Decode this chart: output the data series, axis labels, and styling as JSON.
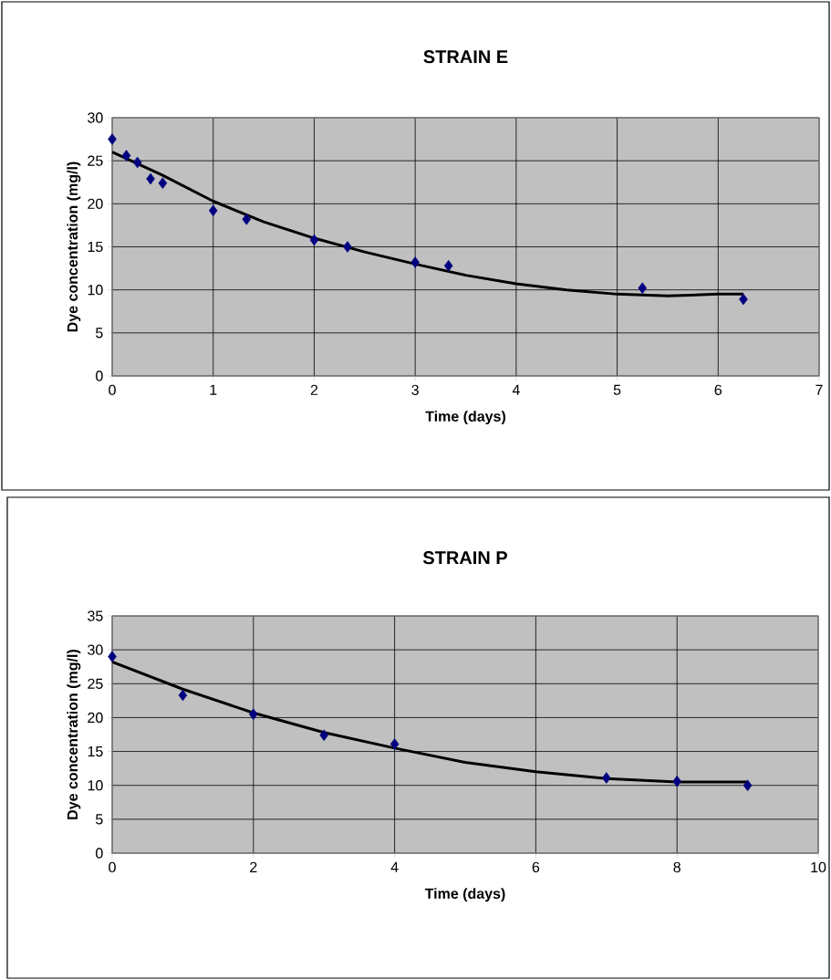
{
  "chart_data": [
    {
      "type": "scatter",
      "title": "STRAIN E",
      "xlabel": "Time (days)",
      "ylabel": "Dye concentration (mg/l)",
      "xlim": [
        0,
        7
      ],
      "ylim": [
        0,
        30
      ],
      "xticks": [
        0,
        1,
        2,
        3,
        4,
        5,
        6,
        7
      ],
      "yticks": [
        0,
        5,
        10,
        15,
        20,
        25,
        30
      ],
      "grid": true,
      "series": [
        {
          "color": "#000080",
          "marker": "diamond",
          "x": [
            0,
            0.14,
            0.25,
            0.38,
            0.5,
            1,
            1.33,
            2,
            2.33,
            3,
            3.33,
            5.25,
            6.25
          ],
          "values": [
            27.5,
            25.6,
            24.8,
            22.9,
            22.4,
            19.2,
            18.2,
            15.8,
            15.0,
            13.2,
            12.8,
            10.2,
            8.9
          ]
        },
        {
          "type": "line",
          "color": "#000000",
          "line_style": "solid",
          "x": [
            0,
            0.5,
            1,
            1.5,
            2,
            2.5,
            3,
            3.5,
            4,
            4.5,
            5,
            5.5,
            6,
            6.25
          ],
          "values": [
            26,
            23.3,
            20.3,
            17.9,
            16,
            14.4,
            13,
            11.7,
            10.7,
            10,
            9.5,
            9.3,
            9.5,
            9.5
          ]
        }
      ]
    },
    {
      "type": "scatter",
      "title": "STRAIN P",
      "xlabel": "Time (days)",
      "ylabel": "Dye concentration (mg/l)",
      "xlim": [
        0,
        10
      ],
      "ylim": [
        0,
        35
      ],
      "xticks": [
        0,
        2,
        4,
        6,
        8,
        10
      ],
      "yticks": [
        0,
        5,
        10,
        15,
        20,
        25,
        30,
        35
      ],
      "grid": true,
      "series": [
        {
          "color": "#000080",
          "marker": "diamond",
          "x": [
            0,
            1,
            2,
            3,
            4,
            7,
            8,
            9
          ],
          "values": [
            29,
            23.3,
            20.5,
            17.4,
            16.1,
            11.1,
            10.6,
            10
          ]
        },
        {
          "type": "line",
          "color": "#000000",
          "line_style": "solid",
          "x": [
            0,
            1,
            2,
            3,
            4,
            5,
            6,
            7,
            8,
            9
          ],
          "values": [
            28.2,
            24.2,
            20.7,
            17.8,
            15.5,
            13.4,
            12,
            11,
            10.5,
            10.5
          ]
        }
      ]
    }
  ]
}
